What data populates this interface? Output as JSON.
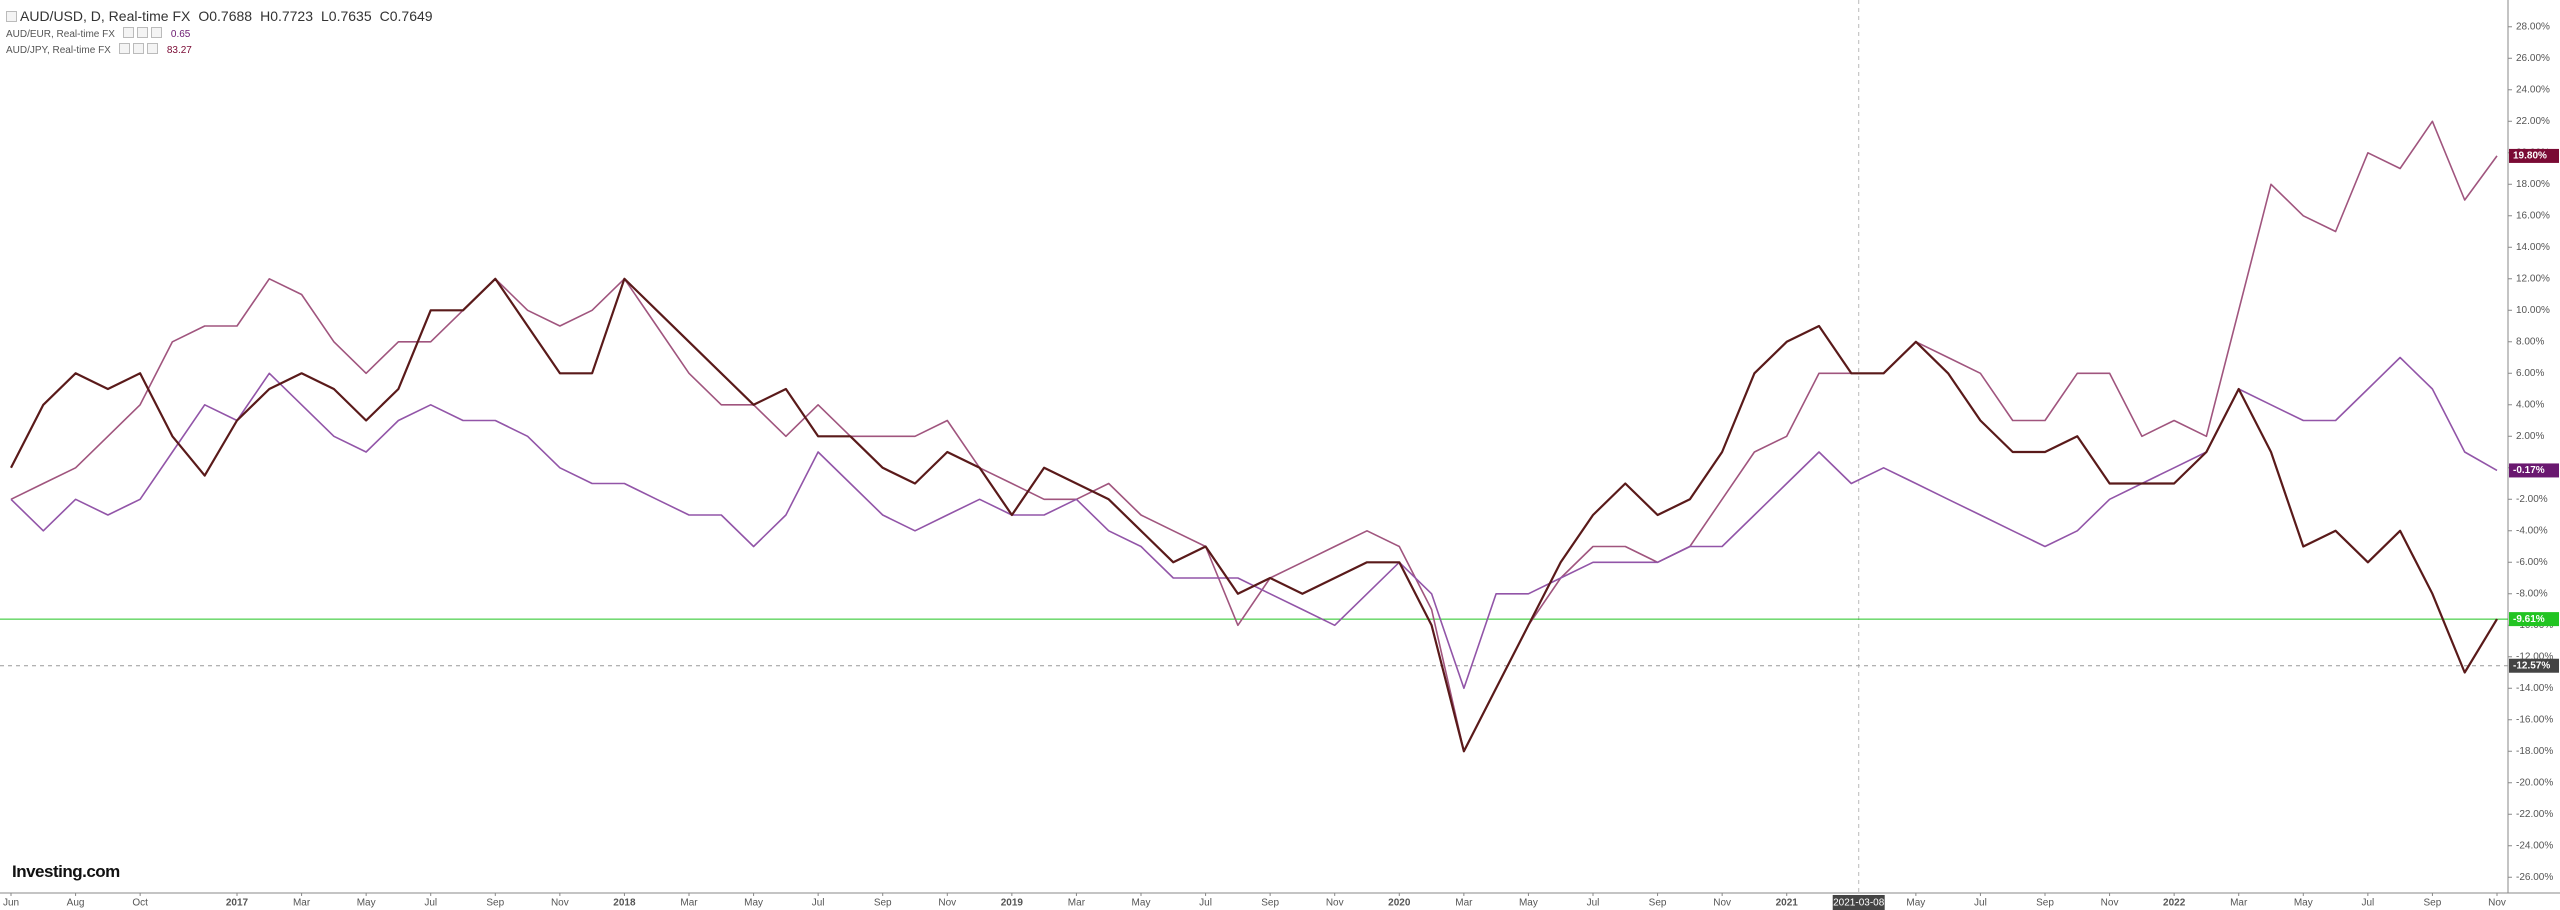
{
  "header": {
    "ohlc": [
      "O0.7688",
      "H0.7723",
      "L0.7635",
      "C0.7649"
    ]
  },
  "logo": "Investing.com",
  "chart_data": {
    "type": "line",
    "categories": [
      "Jun",
      null,
      "Aug",
      null,
      "Oct",
      null,
      null,
      "2017",
      null,
      "Mar",
      null,
      "May",
      null,
      "Jul",
      null,
      "Sep",
      null,
      "Nov",
      null,
      "2018",
      null,
      "Mar",
      null,
      "May",
      null,
      "Jul",
      null,
      "Sep",
      null,
      "Nov",
      null,
      "2019",
      null,
      "Mar",
      null,
      "May",
      null,
      "Jul",
      null,
      "Sep",
      null,
      "Nov",
      null,
      "2020",
      null,
      "Mar",
      null,
      "May",
      null,
      "Jul",
      null,
      "Sep",
      null,
      "Nov",
      null,
      "2021",
      null,
      null,
      null,
      "May",
      null,
      "Jul",
      null,
      "Sep",
      null,
      "Nov",
      null,
      "2022",
      null,
      "Mar",
      null,
      "May",
      null,
      "Jul",
      null,
      "Sep",
      null,
      "Nov"
    ],
    "series": [
      {
        "name": "AUD/USD, D, Real-time FX",
        "color": "#5a1a1a",
        "tag_color": "#22c422",
        "last_label": "-9.61%",
        "values": [
          0,
          4,
          6,
          5,
          6,
          2,
          -0.5,
          3,
          5,
          6,
          5,
          3,
          5,
          10,
          10,
          12,
          9,
          6,
          6,
          12,
          10,
          8,
          6,
          4,
          5,
          2,
          2,
          0,
          -1,
          1,
          0,
          -3,
          0,
          -1,
          -2,
          -4,
          -6,
          -5,
          -8,
          -7,
          -8,
          -7,
          -6,
          -6,
          -10,
          -18,
          -14,
          -10,
          -6,
          -3,
          -1,
          -3,
          -2,
          1,
          6,
          8,
          9,
          6,
          6,
          8,
          6,
          3,
          1,
          1,
          2,
          -1,
          -1,
          -1,
          1,
          5,
          1,
          -5,
          -4,
          -6,
          -4,
          -8,
          -13,
          -9.61
        ]
      },
      {
        "name": "AUD/EUR, Real-time FX",
        "current": "0.65",
        "color": "#9255a8",
        "tag_color": "#6a1870",
        "last_label": "-0.17%",
        "values": [
          -2,
          -4,
          -2,
          -3,
          -2,
          1,
          4,
          3,
          6,
          4,
          2,
          1,
          3,
          4,
          3,
          3,
          2,
          0,
          -1,
          -1,
          -2,
          -3,
          -3,
          -5,
          -3,
          1,
          -1,
          -3,
          -4,
          -3,
          -2,
          -3,
          -3,
          -2,
          -4,
          -5,
          -7,
          -7,
          -7,
          -8,
          -9,
          -10,
          -8,
          -6,
          -8,
          -14,
          -8,
          -8,
          -7,
          -6,
          -6,
          -6,
          -5,
          -5,
          -3,
          -1,
          1,
          -1,
          0,
          -1,
          -2,
          -3,
          -4,
          -5,
          -4,
          -2,
          -1,
          0,
          1,
          5,
          4,
          3,
          3,
          5,
          7,
          5,
          1,
          -0.17
        ]
      },
      {
        "name": "AUD/JPY, Real-time FX",
        "current": "83.27",
        "color": "#a0557e",
        "tag_color": "#7a0a34",
        "last_label": "19.80%",
        "values": [
          -2,
          -1,
          0,
          2,
          4,
          8,
          9,
          9,
          12,
          11,
          8,
          6,
          8,
          8,
          10,
          12,
          10,
          9,
          10,
          12,
          9,
          6,
          4,
          4,
          2,
          4,
          2,
          2,
          2,
          3,
          0,
          -1,
          -2,
          -2,
          -1,
          -3,
          -4,
          -5,
          -10,
          -7,
          -6,
          -5,
          -4,
          -5,
          -9,
          -18,
          -14,
          -10,
          -7,
          -5,
          -5,
          -6,
          -5,
          -2,
          1,
          2,
          6,
          6,
          6,
          8,
          7,
          6,
          3,
          3,
          6,
          6,
          2,
          3,
          2,
          10,
          18,
          16,
          15,
          20,
          19,
          22,
          17,
          19.8
        ]
      }
    ],
    "price_line_series": 0,
    "crosshair": {
      "date": "2021-03-08",
      "value": -12.57,
      "value_label": "-12.57%"
    },
    "ylim": [
      -27,
      29.7
    ],
    "yticks": [
      {
        "value": 28,
        "label": "28.00%"
      },
      {
        "value": 26,
        "label": "26.00%"
      },
      {
        "value": 24,
        "label": "24.00%"
      },
      {
        "value": 22,
        "label": "22.00%"
      },
      {
        "value": 20,
        "label": "20.00%"
      },
      {
        "value": 18,
        "label": "18.00%"
      },
      {
        "value": 16,
        "label": "16.00%"
      },
      {
        "value": 14,
        "label": "14.00%"
      },
      {
        "value": 12,
        "label": "12.00%"
      },
      {
        "value": 10,
        "label": "10.00%"
      },
      {
        "value": 8,
        "label": "8.00%"
      },
      {
        "value": 6,
        "label": "6.00%"
      },
      {
        "value": 4,
        "label": "4.00%"
      },
      {
        "value": 2,
        "label": "2.00%"
      },
      {
        "value": 0,
        "label": "0.00%"
      },
      {
        "value": -2,
        "label": "-2.00%"
      },
      {
        "value": -4,
        "label": "-4.00%"
      },
      {
        "value": -6,
        "label": "-6.00%"
      },
      {
        "value": -8,
        "label": "-8.00%"
      },
      {
        "value": -10,
        "label": "-10.00%"
      },
      {
        "value": -12,
        "label": "-12.00%"
      },
      {
        "value": -14,
        "label": "-14.00%"
      },
      {
        "value": -16,
        "label": "-16.00%"
      },
      {
        "value": -18,
        "label": "-18.00%"
      },
      {
        "value": -20,
        "label": "-20.00%"
      },
      {
        "value": -22,
        "label": "-22.00%"
      },
      {
        "value": -24,
        "label": "-24.00%"
      },
      {
        "value": -26,
        "label": "-26.00%"
      }
    ],
    "grid": false
  }
}
